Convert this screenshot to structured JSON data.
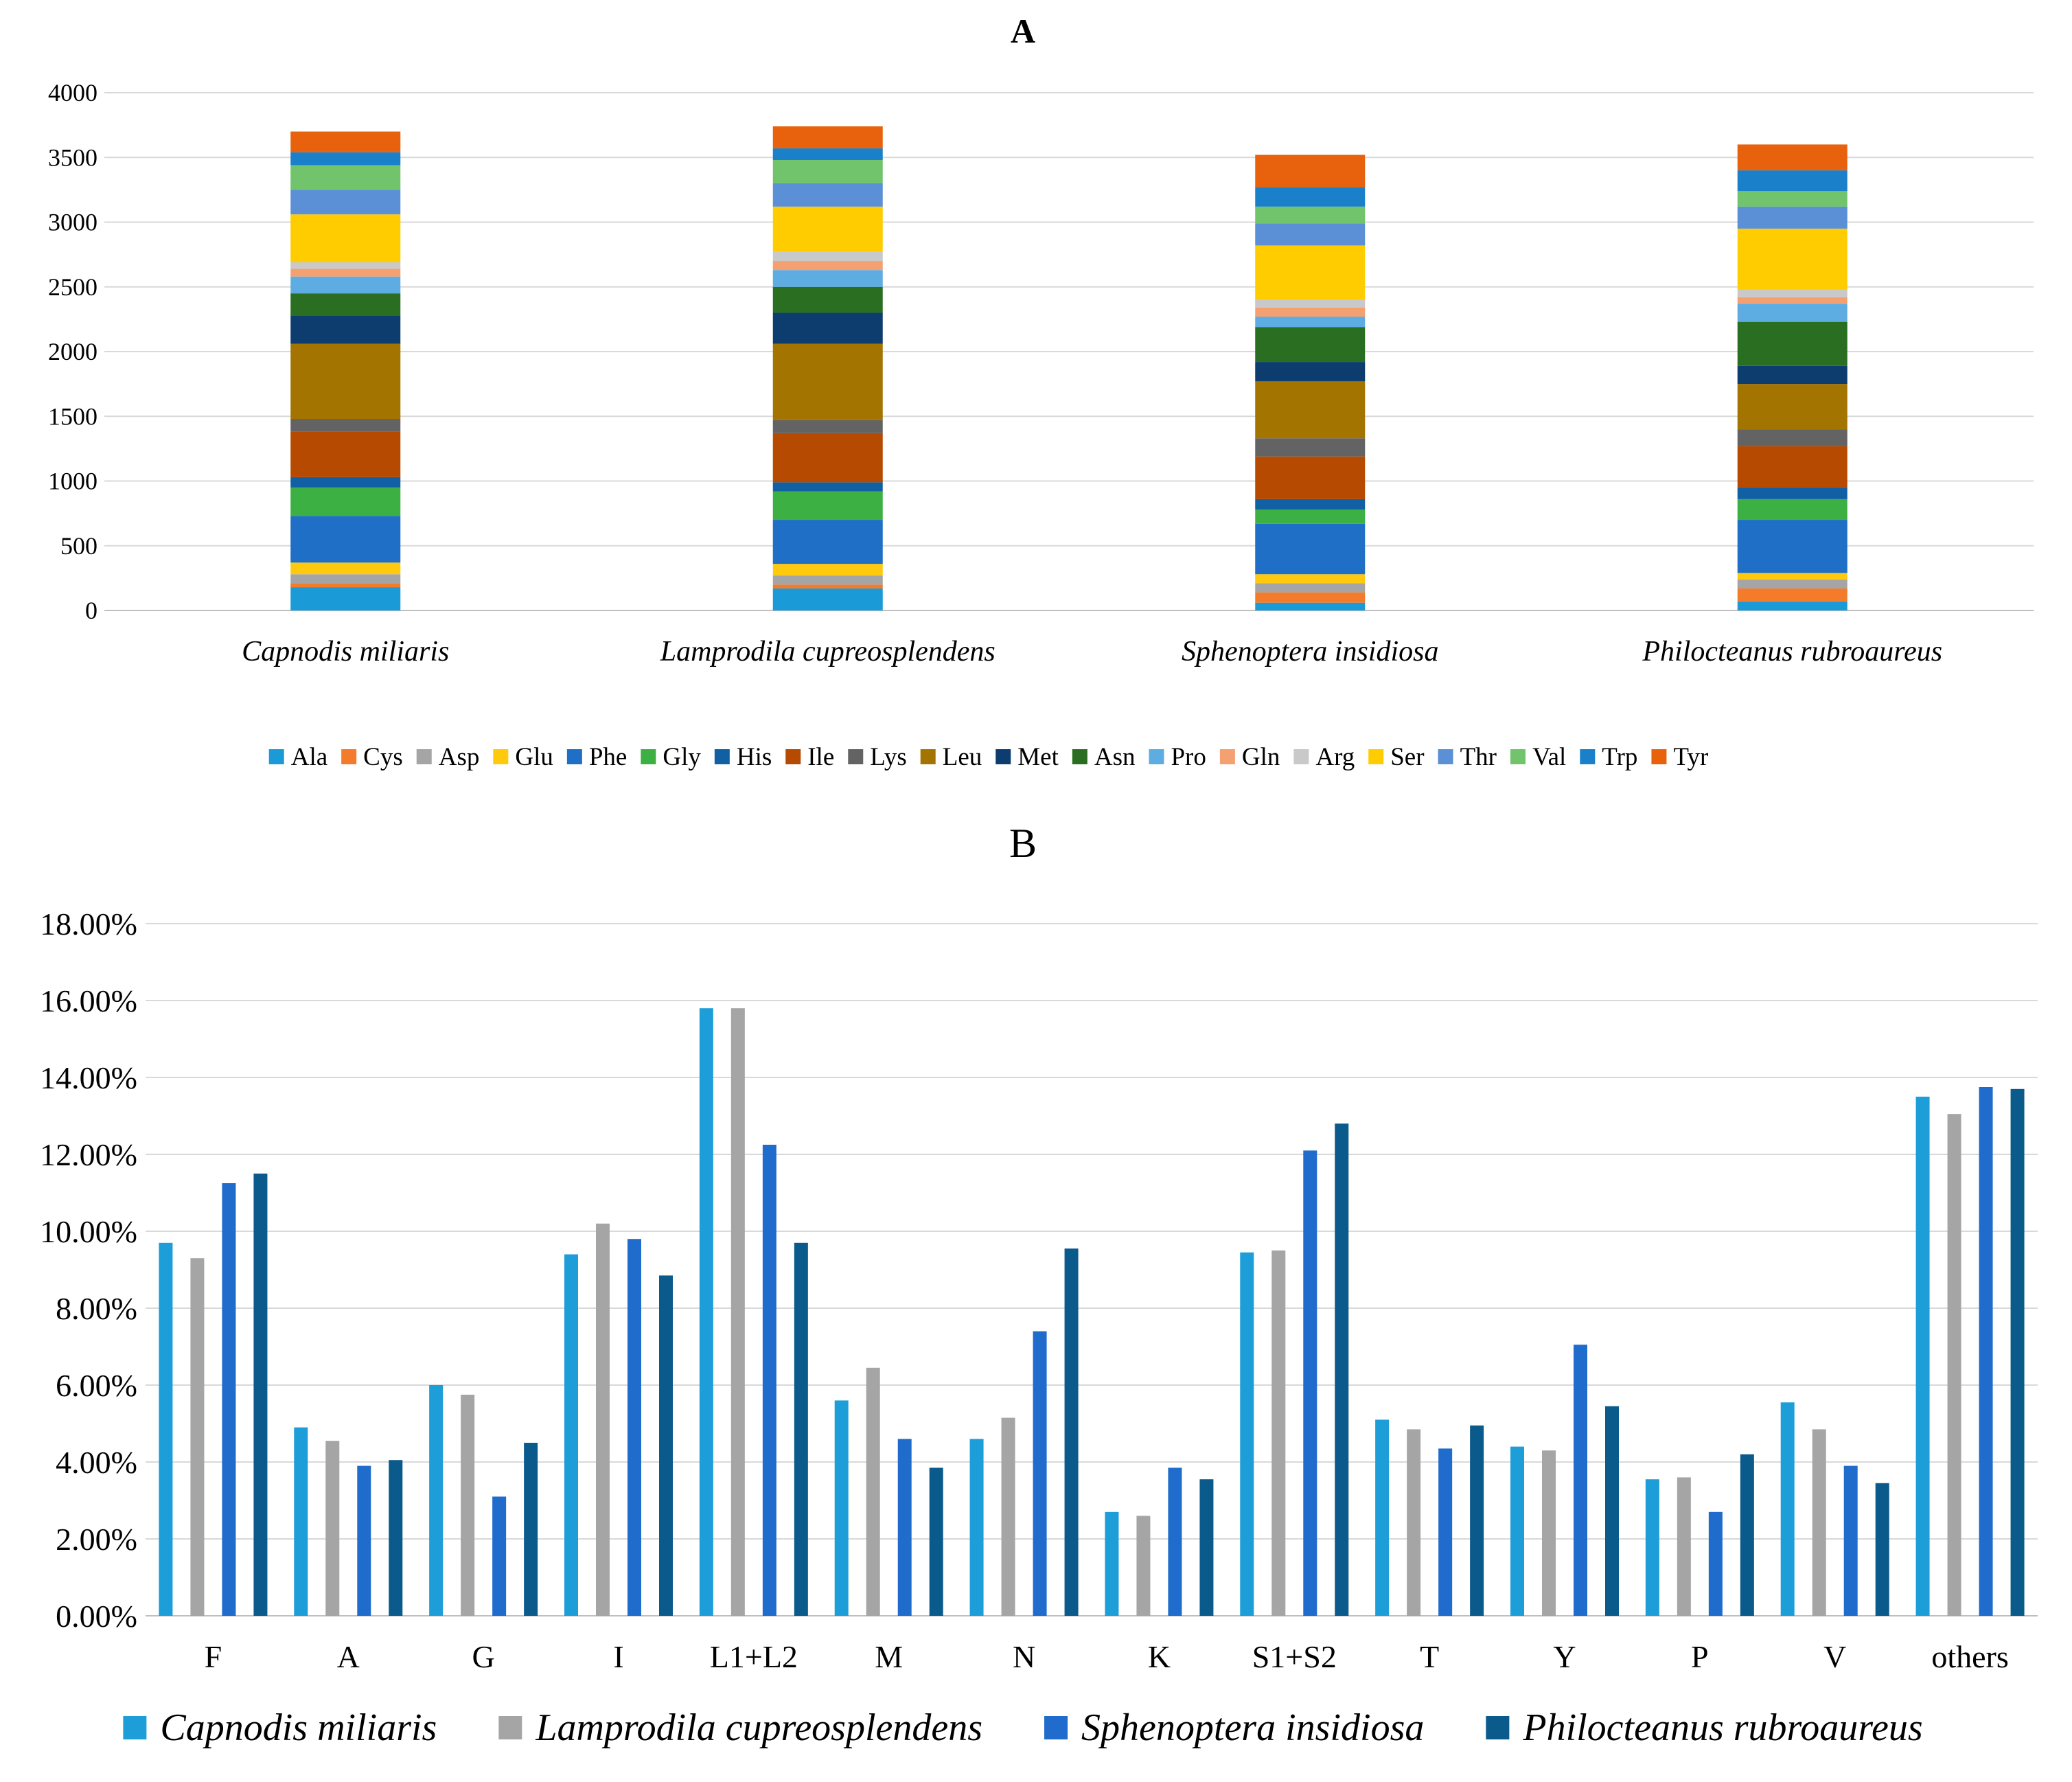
{
  "chart_data": [
    {
      "panel": "A",
      "type": "stacked-bar",
      "title": "A",
      "xlabel": "",
      "ylabel": "",
      "ylim": [
        0,
        4000
      ],
      "yticks": [
        0,
        500,
        1000,
        1500,
        2000,
        2500,
        3000,
        3500,
        4000
      ],
      "grid": true,
      "legend_position": "bottom",
      "categories": [
        "Capnodis miliaris",
        "Lamprodila cupreosplendens",
        "Sphenoptera insidiosa",
        "Philocteanus rubroaureus"
      ],
      "series": [
        {
          "name": "Ala",
          "color": "#1a9bd7",
          "values": [
            180,
            170,
            60,
            70
          ]
        },
        {
          "name": "Cys",
          "color": "#f47b2a",
          "values": [
            30,
            30,
            80,
            100
          ]
        },
        {
          "name": "Asp",
          "color": "#a5a5a5",
          "values": [
            70,
            70,
            70,
            70
          ]
        },
        {
          "name": "Glu",
          "color": "#ffc90e",
          "values": [
            90,
            90,
            70,
            50
          ]
        },
        {
          "name": "Phe",
          "color": "#1f6fc6",
          "values": [
            360,
            340,
            390,
            410
          ]
        },
        {
          "name": "Gly",
          "color": "#3cb043",
          "values": [
            220,
            220,
            110,
            160
          ]
        },
        {
          "name": "His",
          "color": "#1160a3",
          "values": [
            80,
            70,
            80,
            90
          ]
        },
        {
          "name": "Ile",
          "color": "#b54a00",
          "values": [
            350,
            380,
            330,
            320
          ]
        },
        {
          "name": "Lys",
          "color": "#636363",
          "values": [
            100,
            100,
            140,
            130
          ]
        },
        {
          "name": "Leu",
          "color": "#a37400",
          "values": [
            580,
            590,
            440,
            350
          ]
        },
        {
          "name": "Met",
          "color": "#0d3c6e",
          "values": [
            220,
            240,
            150,
            140
          ]
        },
        {
          "name": "Asn",
          "color": "#2a6e22",
          "values": [
            170,
            200,
            270,
            340
          ]
        },
        {
          "name": "Pro",
          "color": "#5dade2",
          "values": [
            130,
            130,
            80,
            140
          ]
        },
        {
          "name": "Gln",
          "color": "#f4a070",
          "values": [
            60,
            70,
            70,
            50
          ]
        },
        {
          "name": "Arg",
          "color": "#c9c9c9",
          "values": [
            50,
            70,
            60,
            60
          ]
        },
        {
          "name": "Ser",
          "color": "#ffcc00",
          "values": [
            370,
            350,
            420,
            470
          ]
        },
        {
          "name": "Thr",
          "color": "#5b8fd6",
          "values": [
            190,
            180,
            170,
            170
          ]
        },
        {
          "name": "Val",
          "color": "#71c36c",
          "values": [
            190,
            180,
            130,
            120
          ]
        },
        {
          "name": "Trp",
          "color": "#1a80c9",
          "values": [
            100,
            90,
            150,
            160
          ]
        },
        {
          "name": "Tyr",
          "color": "#e8620e",
          "values": [
            160,
            170,
            250,
            200
          ]
        }
      ]
    },
    {
      "panel": "B",
      "type": "bar",
      "title": "B",
      "xlabel": "",
      "ylabel": "",
      "ylim": [
        0,
        18
      ],
      "yticks": [
        "0.00%",
        "2.00%",
        "4.00%",
        "6.00%",
        "8.00%",
        "10.00%",
        "12.00%",
        "14.00%",
        "16.00%",
        "18.00%"
      ],
      "value_unit": "%",
      "grid": true,
      "legend_position": "bottom",
      "categories": [
        "F",
        "A",
        "G",
        "I",
        "L1+L2",
        "M",
        "N",
        "K",
        "S1+S2",
        "T",
        "Y",
        "P",
        "V",
        "others"
      ],
      "series": [
        {
          "name": "Capnodis miliaris",
          "color": "#1e9ed8",
          "values": [
            9.7,
            4.9,
            6.0,
            9.4,
            15.8,
            5.6,
            4.6,
            2.7,
            9.45,
            5.1,
            4.4,
            3.55,
            5.55,
            13.5
          ]
        },
        {
          "name": "Lamprodila cupreosplendens",
          "color": "#a5a5a5",
          "values": [
            9.3,
            4.55,
            5.75,
            10.2,
            15.8,
            6.45,
            5.15,
            2.6,
            9.5,
            4.85,
            4.3,
            3.6,
            4.85,
            13.05
          ]
        },
        {
          "name": "Sphenoptera insidiosa",
          "color": "#1f6ccd",
          "values": [
            11.25,
            3.9,
            3.1,
            9.8,
            12.25,
            4.6,
            7.4,
            3.85,
            12.1,
            4.35,
            7.05,
            2.7,
            3.9,
            13.75
          ]
        },
        {
          "name": "Philocteanus rubroaureus",
          "color": "#0b5a8c",
          "values": [
            11.5,
            4.05,
            4.5,
            8.85,
            9.7,
            3.85,
            9.55,
            3.55,
            12.8,
            4.95,
            5.45,
            4.2,
            3.45,
            13.7
          ]
        }
      ]
    }
  ]
}
